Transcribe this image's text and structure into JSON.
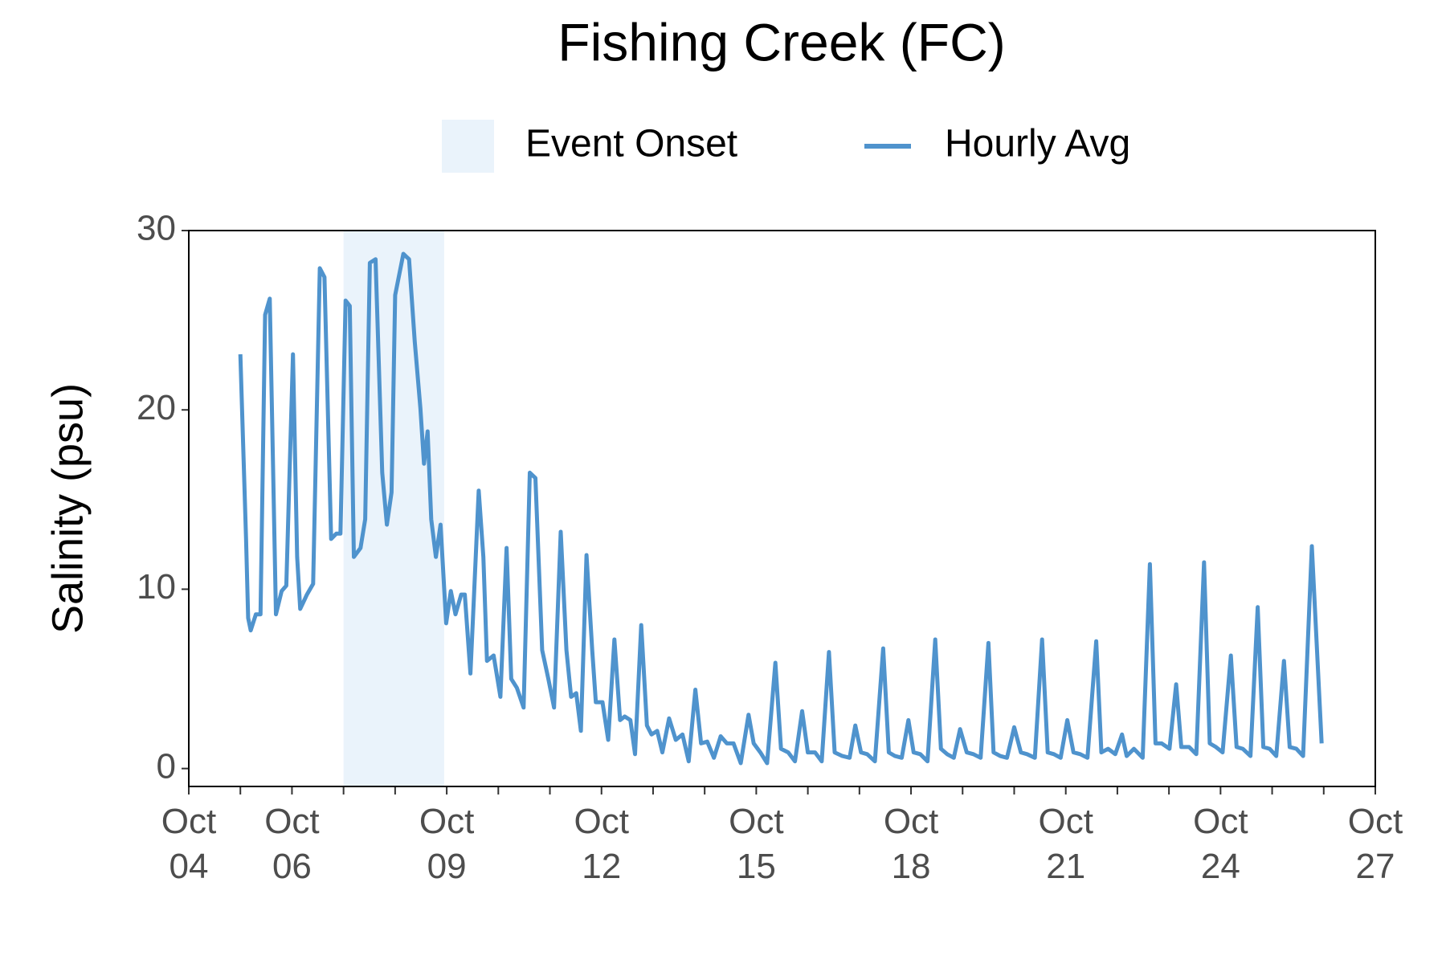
{
  "chart_data": {
    "type": "line",
    "title": "Fishing Creek (FC)",
    "y_label": "Salinity (psu)",
    "legend_position": "top",
    "shaded_regions": [
      {
        "name": "Event Onset",
        "start": 7,
        "end": 8.95,
        "color": "#eaf3fb"
      }
    ],
    "series": [
      {
        "name": "Hourly Avg",
        "color": "#4f93cd",
        "x": [
          5.0,
          5.11,
          5.15,
          5.2,
          5.3,
          5.39,
          5.48,
          5.57,
          5.69,
          5.8,
          5.89,
          6.02,
          6.1,
          6.16,
          6.29,
          6.41,
          6.54,
          6.63,
          6.76,
          6.86,
          6.94,
          7.04,
          7.12,
          7.2,
          7.33,
          7.42,
          7.51,
          7.62,
          7.75,
          7.84,
          7.93,
          8.0,
          8.16,
          8.27,
          8.38,
          8.49,
          8.56,
          8.63,
          8.7,
          8.79,
          8.88,
          8.99,
          9.08,
          9.17,
          9.28,
          9.35,
          9.46,
          9.53,
          9.62,
          9.71,
          9.78,
          9.91,
          10.04,
          10.16,
          10.25,
          10.36,
          10.49,
          10.61,
          10.72,
          10.85,
          10.97,
          11.08,
          11.21,
          11.32,
          11.41,
          11.51,
          11.6,
          11.71,
          11.82,
          11.89,
          12.02,
          12.13,
          12.25,
          12.36,
          12.45,
          12.56,
          12.65,
          12.77,
          12.88,
          12.97,
          13.08,
          13.18,
          13.31,
          13.44,
          13.57,
          13.69,
          13.82,
          13.93,
          14.05,
          14.18,
          14.31,
          14.43,
          14.56,
          14.7,
          14.85,
          14.95,
          15.08,
          15.21,
          15.37,
          15.48,
          15.62,
          15.75,
          15.89,
          16.0,
          16.14,
          16.27,
          16.41,
          16.52,
          16.67,
          16.81,
          16.92,
          17.03,
          17.15,
          17.3,
          17.46,
          17.57,
          17.69,
          17.82,
          17.95,
          18.05,
          18.18,
          18.32,
          18.47,
          18.58,
          18.7,
          18.83,
          18.95,
          19.08,
          19.21,
          19.35,
          19.5,
          19.6,
          19.73,
          19.86,
          20.0,
          20.13,
          20.25,
          20.4,
          20.54,
          20.65,
          20.77,
          20.9,
          21.03,
          21.15,
          21.28,
          21.42,
          21.59,
          21.69,
          21.82,
          21.96,
          22.09,
          22.18,
          22.32,
          22.49,
          22.63,
          22.74,
          22.86,
          23.01,
          23.14,
          23.24,
          23.39,
          23.53,
          23.68,
          23.79,
          23.91,
          24.04,
          24.2,
          24.31,
          24.43,
          24.58,
          24.72,
          24.83,
          24.95,
          25.08,
          25.23,
          25.34,
          25.47,
          25.6,
          25.77,
          25.96
        ],
        "values": [
          23.1,
          12.8,
          8.4,
          7.7,
          8.6,
          8.6,
          25.3,
          26.2,
          8.6,
          9.9,
          10.2,
          23.1,
          11.8,
          8.9,
          9.7,
          10.3,
          27.9,
          27.4,
          12.8,
          13.1,
          13.1,
          26.1,
          25.8,
          11.8,
          12.3,
          13.9,
          28.2,
          28.4,
          16.5,
          13.6,
          15.4,
          26.4,
          28.7,
          28.4,
          23.8,
          20.1,
          17.0,
          18.8,
          13.9,
          11.8,
          13.6,
          8.1,
          9.9,
          8.6,
          9.7,
          9.7,
          5.3,
          9.7,
          15.5,
          11.8,
          6.0,
          6.3,
          4.0,
          12.3,
          5.0,
          4.5,
          3.4,
          16.5,
          16.2,
          6.6,
          5.0,
          3.4,
          13.2,
          6.6,
          4.0,
          4.2,
          2.1,
          11.9,
          6.6,
          3.7,
          3.7,
          1.6,
          7.2,
          2.7,
          2.9,
          2.7,
          0.8,
          8.0,
          2.4,
          1.9,
          2.1,
          0.9,
          2.8,
          1.6,
          1.9,
          0.4,
          4.4,
          1.4,
          1.5,
          0.6,
          1.8,
          1.4,
          1.4,
          0.3,
          3.0,
          1.4,
          0.9,
          0.3,
          5.9,
          1.1,
          0.9,
          0.4,
          3.2,
          0.9,
          0.9,
          0.4,
          6.5,
          0.9,
          0.7,
          0.6,
          2.4,
          0.9,
          0.8,
          0.4,
          6.7,
          0.9,
          0.7,
          0.6,
          2.7,
          0.9,
          0.8,
          0.4,
          7.2,
          1.1,
          0.8,
          0.6,
          2.2,
          0.9,
          0.8,
          0.6,
          7.0,
          0.9,
          0.7,
          0.6,
          2.3,
          0.9,
          0.8,
          0.6,
          7.2,
          0.9,
          0.8,
          0.6,
          2.7,
          0.9,
          0.8,
          0.6,
          7.1,
          0.9,
          1.1,
          0.8,
          1.9,
          0.7,
          1.1,
          0.6,
          11.4,
          1.4,
          1.4,
          1.1,
          4.7,
          1.2,
          1.2,
          0.8,
          11.5,
          1.4,
          1.2,
          0.9,
          6.3,
          1.2,
          1.1,
          0.7,
          9.0,
          1.2,
          1.1,
          0.7,
          6.0,
          1.2,
          1.1,
          0.7,
          12.4,
          1.4
        ]
      }
    ],
    "xlim": [
      4,
      27
    ],
    "xticks": [
      {
        "value": 4,
        "label": "Oct\n04"
      },
      {
        "value": 6,
        "label": "Oct\n06"
      },
      {
        "value": 9,
        "label": "Oct\n09"
      },
      {
        "value": 12,
        "label": "Oct\n12"
      },
      {
        "value": 15,
        "label": "Oct\n15"
      },
      {
        "value": 18,
        "label": "Oct\n18"
      },
      {
        "value": 21,
        "label": "Oct\n21"
      },
      {
        "value": 24,
        "label": "Oct\n24"
      },
      {
        "value": 27,
        "label": "Oct\n27"
      }
    ],
    "xminor_ticks": [
      5,
      7,
      8,
      10,
      11,
      13,
      14,
      16,
      17,
      19,
      20,
      22,
      23,
      25,
      26
    ],
    "ylim": [
      -1,
      30
    ],
    "yticks": [
      0,
      10,
      20,
      30
    ]
  }
}
